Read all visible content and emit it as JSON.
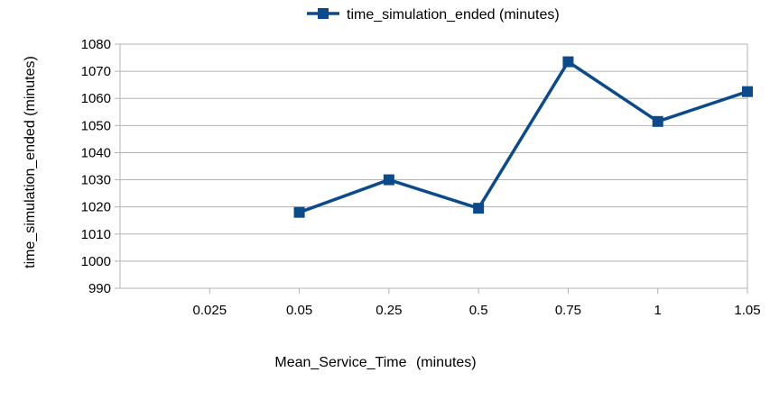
{
  "chart_data": {
    "type": "line",
    "categories": [
      "0.025",
      "0.05",
      "0.25",
      "0.5",
      "0.75",
      "1",
      "1.05"
    ],
    "series": [
      {
        "name": "time_simulation_ended (minutes)",
        "values": [
          null,
          1018,
          1030,
          1019.5,
          1073.5,
          1051.5,
          1062.5
        ],
        "color": "#0b4a8b"
      }
    ],
    "xlabel_main": "Mean_Service_Time",
    "xlabel_unit": "(minutes)",
    "ylabel": "time_simulation_ended (minutes)",
    "ylim": [
      990,
      1080
    ],
    "yticks": [
      990,
      1000,
      1010,
      1020,
      1030,
      1040,
      1050,
      1060,
      1070,
      1080
    ],
    "grid": "horizontal",
    "legend": "top-center",
    "marker": "square"
  }
}
